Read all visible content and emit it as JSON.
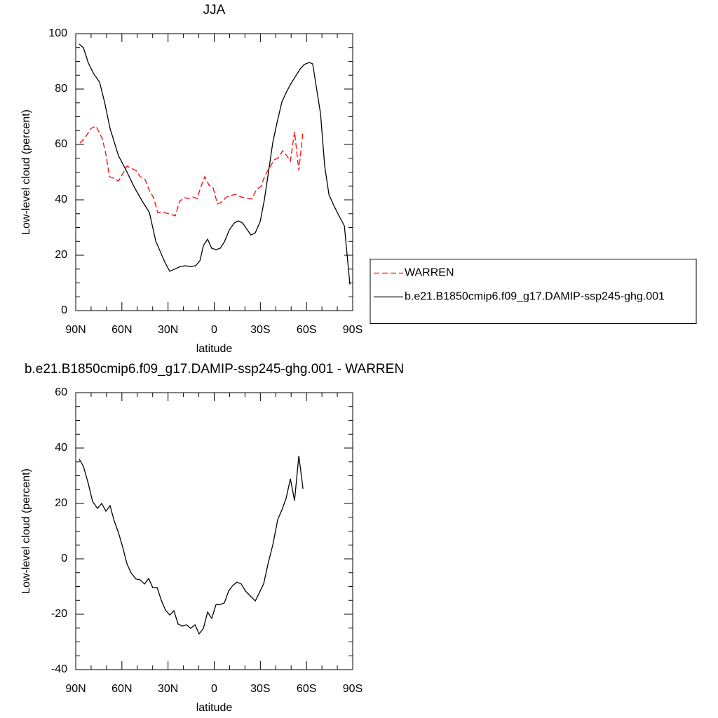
{
  "chart_data": [
    {
      "type": "line",
      "title": "JJA",
      "xlabel": "latitude",
      "ylabel": "Low-level cloud (percent)",
      "xlim": [
        90,
        -90
      ],
      "xticks": [
        {
          "value": 90,
          "label": "90N"
        },
        {
          "value": 60,
          "label": "60N"
        },
        {
          "value": 30,
          "label": "30N"
        },
        0,
        {
          "value": -30,
          "label": "30S"
        },
        {
          "value": -60,
          "label": "60S"
        },
        {
          "value": -90,
          "label": "90S"
        }
      ],
      "ylim": [
        0,
        100
      ],
      "yticks": [
        0,
        20,
        40,
        60,
        80,
        100
      ],
      "legend": "right",
      "series": [
        {
          "name": "WARREN",
          "color": "#ff0000",
          "style": "dashed",
          "x": [
            87.3,
            84.1,
            80,
            76.8,
            72.7,
            70.4,
            68.1,
            65.4,
            62.2,
            59.5,
            56.7,
            54,
            50.8,
            48.1,
            44.9,
            42.1,
            39.4,
            36.7,
            33.5,
            30.7,
            28,
            25.3,
            22.5,
            19.4,
            16.6,
            13.9,
            11.1,
            8.4,
            6.1,
            3.4,
            0.7,
            -2.1,
            -4.8,
            -8,
            -10.7,
            -13.5,
            -16.2,
            -18.9,
            -21.7,
            -24.4,
            -27.6,
            -30.3,
            -33.1,
            -36.3,
            -39,
            -41.7,
            -44.5,
            -47.2,
            -49.5,
            -52.2,
            -55,
            -57.7
          ],
          "values": [
            60.5,
            62.3,
            65.8,
            66.6,
            62,
            56.5,
            48.4,
            47.8,
            46.8,
            49.4,
            52.2,
            51.4,
            50.6,
            48.4,
            47.3,
            43.3,
            40.8,
            35.4,
            35.4,
            35.2,
            34.7,
            34.2,
            39.5,
            40.8,
            40.5,
            41,
            40.5,
            45.1,
            48.4,
            45.3,
            44.3,
            38.5,
            39.2,
            41,
            41.5,
            42,
            41.3,
            40.8,
            40.5,
            40.3,
            43.8,
            44.8,
            48.9,
            51.9,
            54.4,
            55.2,
            57.7,
            55.9,
            53.9,
            64.6,
            50.6,
            64.8
          ]
        },
        {
          "name": "b.e21.B1850cmip6.f09_g17.DAMIP-ssp245-ghg.001",
          "color": "#000000",
          "style": "solid",
          "x": [
            87.7,
            85,
            81.8,
            78.6,
            74.5,
            71.3,
            67.7,
            62.2,
            57.2,
            51.7,
            46.7,
            42.1,
            38,
            32.1,
            28.9,
            24.8,
            22.1,
            18.9,
            15.3,
            12.1,
            9.3,
            7,
            4.3,
            1.6,
            -1.2,
            -3.9,
            -6.6,
            -9.8,
            -13,
            -15.7,
            -18.5,
            -21.2,
            -23.9,
            -26.7,
            -29.9,
            -32.6,
            -35.3,
            -38.1,
            -40.8,
            -44,
            -47.2,
            -49.9,
            -53.1,
            -55.9,
            -58.6,
            -61.8,
            -64,
            -66.3,
            -69.1,
            -71.8,
            -74.6,
            -77.7,
            -80.5,
            -84.6,
            -88.2
          ],
          "values": [
            96.2,
            94.9,
            89.4,
            85.8,
            82.5,
            75.4,
            65.8,
            55.9,
            50.6,
            44.3,
            39.5,
            35.4,
            25.1,
            17.5,
            14.2,
            15.2,
            15.9,
            16.2,
            15.9,
            16.2,
            18,
            23.5,
            25.8,
            22.5,
            22,
            22.5,
            24.8,
            29.1,
            31.6,
            32.4,
            31.6,
            29.4,
            27.3,
            28.1,
            32.2,
            40,
            50.1,
            60.8,
            67.8,
            75.4,
            79.2,
            82,
            84.8,
            87.3,
            88.9,
            89.6,
            89.1,
            81,
            71.1,
            52.2,
            41.8,
            38,
            34.9,
            30.6,
            9.4
          ]
        }
      ]
    },
    {
      "type": "line",
      "title": "b.e21.B1850cmip6.f09_g17.DAMIP-ssp245-ghg.001 - WARREN",
      "xlabel": "latitude",
      "ylabel": "Low-level cloud (percent)",
      "xlim": [
        90,
        -90
      ],
      "xticks": [
        {
          "value": 90,
          "label": "90N"
        },
        {
          "value": 60,
          "label": "60N"
        },
        {
          "value": 30,
          "label": "30N"
        },
        0,
        {
          "value": -30,
          "label": "30S"
        },
        {
          "value": -60,
          "label": "60S"
        },
        {
          "value": -90,
          "label": "90S"
        }
      ],
      "ylim": [
        -40,
        60
      ],
      "yticks": [
        -40,
        -20,
        0,
        20,
        40,
        60
      ],
      "series": [
        {
          "color": "#000000",
          "style": "solid",
          "x": [
            87.7,
            85,
            81.8,
            79.1,
            75.9,
            73.1,
            70.4,
            67.7,
            65,
            62.2,
            59.5,
            56.7,
            54,
            50.8,
            48.1,
            45.3,
            42.6,
            39.9,
            37.1,
            34.4,
            31.7,
            28.9,
            26.2,
            23.5,
            20.7,
            18,
            15.3,
            12.5,
            9.8,
            7,
            4.3,
            1.6,
            -1.2,
            -3.9,
            -6.6,
            -9.4,
            -12.1,
            -14.8,
            -17.6,
            -20.3,
            -23.1,
            -26.7,
            -29.4,
            -32.2,
            -34.9,
            -38.1,
            -41.3,
            -44,
            -46.7,
            -49.5,
            -52.2,
            -55,
            -57.7
          ],
          "values": [
            36,
            33.4,
            27.1,
            20.8,
            18.2,
            20,
            17.2,
            19.2,
            13.7,
            9.4,
            4.3,
            -1.8,
            -5.1,
            -7.3,
            -7.6,
            -9.1,
            -7.1,
            -10.4,
            -10.4,
            -14.9,
            -18.5,
            -20.3,
            -18.7,
            -23.5,
            -24.3,
            -23.8,
            -25.1,
            -23.8,
            -27.1,
            -25.1,
            -19.2,
            -21.5,
            -16.5,
            -16.5,
            -15.9,
            -11.6,
            -9.6,
            -8.4,
            -9.1,
            -11.6,
            -13.2,
            -15.2,
            -12.2,
            -8.9,
            -2,
            5.1,
            14.2,
            17.7,
            21.8,
            28.9,
            21,
            37.2,
            25.3
          ]
        }
      ]
    }
  ]
}
